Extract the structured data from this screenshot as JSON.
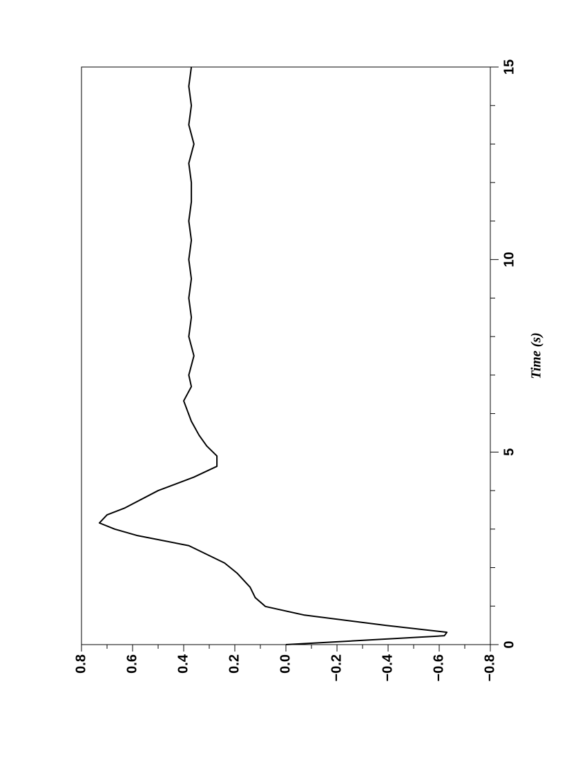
{
  "chart_data": {
    "type": "line",
    "xlabel": "Time (s)",
    "x": [
      0,
      0.23,
      0.32,
      0.5,
      0.77,
      0.99,
      1.22,
      1.49,
      1.85,
      2.12,
      2.57,
      2.83,
      3.0,
      3.16,
      3.37,
      3.55,
      4.0,
      4.35,
      4.63,
      4.9,
      5.16,
      5.44,
      5.8,
      6.33,
      6.7,
      7.0,
      7.5,
      8.0,
      8.5,
      9.0,
      9.5,
      10.0,
      10.5,
      11.0,
      11.5,
      12.0,
      12.5,
      13.0,
      13.5,
      14.0,
      14.5,
      15.0
    ],
    "series": [
      {
        "color": "#000000",
        "values": [
          0,
          -0.62,
          -0.63,
          -0.39,
          -0.07,
          0.08,
          0.12,
          0.14,
          0.19,
          0.24,
          0.38,
          0.58,
          0.67,
          0.73,
          0.7,
          0.63,
          0.5,
          0.36,
          0.27,
          0.27,
          0.31,
          0.34,
          0.37,
          0.4,
          0.37,
          0.38,
          0.36,
          0.38,
          0.37,
          0.38,
          0.37,
          0.38,
          0.37,
          0.38,
          0.37,
          0.37,
          0.38,
          0.36,
          0.38,
          0.37,
          0.38,
          0.37
        ]
      }
    ],
    "xlim": [
      0,
      15
    ],
    "xticks": [
      0,
      5,
      10,
      15
    ],
    "xminorticks": [
      1,
      2,
      3,
      4,
      6,
      7,
      8,
      9,
      11,
      12,
      13,
      14
    ],
    "ylim": [
      -0.8,
      0.8
    ],
    "yticks": [
      {
        "value": -0.8,
        "label": "−0.8"
      },
      {
        "value": -0.6,
        "label": "−0.6"
      },
      {
        "value": -0.4,
        "label": "−0.4"
      },
      {
        "value": -0.2,
        "label": "−0.2"
      },
      {
        "value": 0,
        "label": "0.0"
      },
      0.2,
      0.4,
      0.6,
      0.8
    ]
  }
}
